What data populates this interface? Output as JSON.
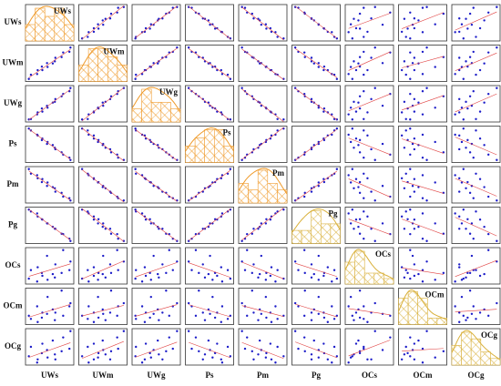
{
  "chart_data": {
    "type": "scatter_matrix",
    "point_color": "#1c1cc8",
    "fit_line_color": "#e04040",
    "variables": [
      {
        "name": "UWs",
        "color": "#ef9a2a",
        "values": [
          12,
          16,
          28,
          29,
          38,
          37,
          48,
          47,
          58,
          62,
          63,
          75,
          78,
          90,
          92
        ]
      },
      {
        "name": "UWm",
        "color": "#ef9a2a",
        "values": [
          8,
          20,
          22,
          33,
          33,
          43,
          42,
          53,
          52,
          58,
          68,
          70,
          83,
          85,
          97
        ]
      },
      {
        "name": "UWg",
        "color": "#ef9a2a",
        "values": [
          14,
          15,
          27,
          32,
          34,
          42,
          44,
          49,
          57,
          59,
          66,
          73,
          79,
          86,
          94
        ]
      },
      {
        "name": "Ps",
        "color": "#ef9a2a",
        "values": [
          90,
          85,
          74,
          72,
          64,
          60,
          55,
          50,
          47,
          40,
          36,
          28,
          22,
          14,
          8
        ]
      },
      {
        "name": "Pm",
        "color": "#ef9a2a",
        "values": [
          92,
          80,
          76,
          68,
          66,
          58,
          57,
          48,
          45,
          42,
          33,
          30,
          20,
          16,
          10
        ]
      },
      {
        "name": "Pg",
        "color": "#d9b03a",
        "values": [
          88,
          83,
          78,
          70,
          62,
          63,
          52,
          52,
          43,
          38,
          38,
          25,
          24,
          12,
          6
        ]
      },
      {
        "name": "OCs",
        "color": "#d9b03a",
        "values": [
          20,
          35,
          15,
          40,
          25,
          30,
          18,
          60,
          28,
          22,
          45,
          30,
          70,
          35,
          50
        ]
      },
      {
        "name": "OCm",
        "color": "#d9b03a",
        "values": [
          25,
          20,
          40,
          15,
          30,
          22,
          55,
          28,
          35,
          18,
          30,
          65,
          25,
          40,
          45
        ]
      },
      {
        "name": "OCg",
        "color": "#d9b03a",
        "values": [
          30,
          45,
          20,
          25,
          50,
          35,
          28,
          40,
          55,
          33,
          25,
          38,
          60,
          42,
          70
        ]
      }
    ]
  }
}
